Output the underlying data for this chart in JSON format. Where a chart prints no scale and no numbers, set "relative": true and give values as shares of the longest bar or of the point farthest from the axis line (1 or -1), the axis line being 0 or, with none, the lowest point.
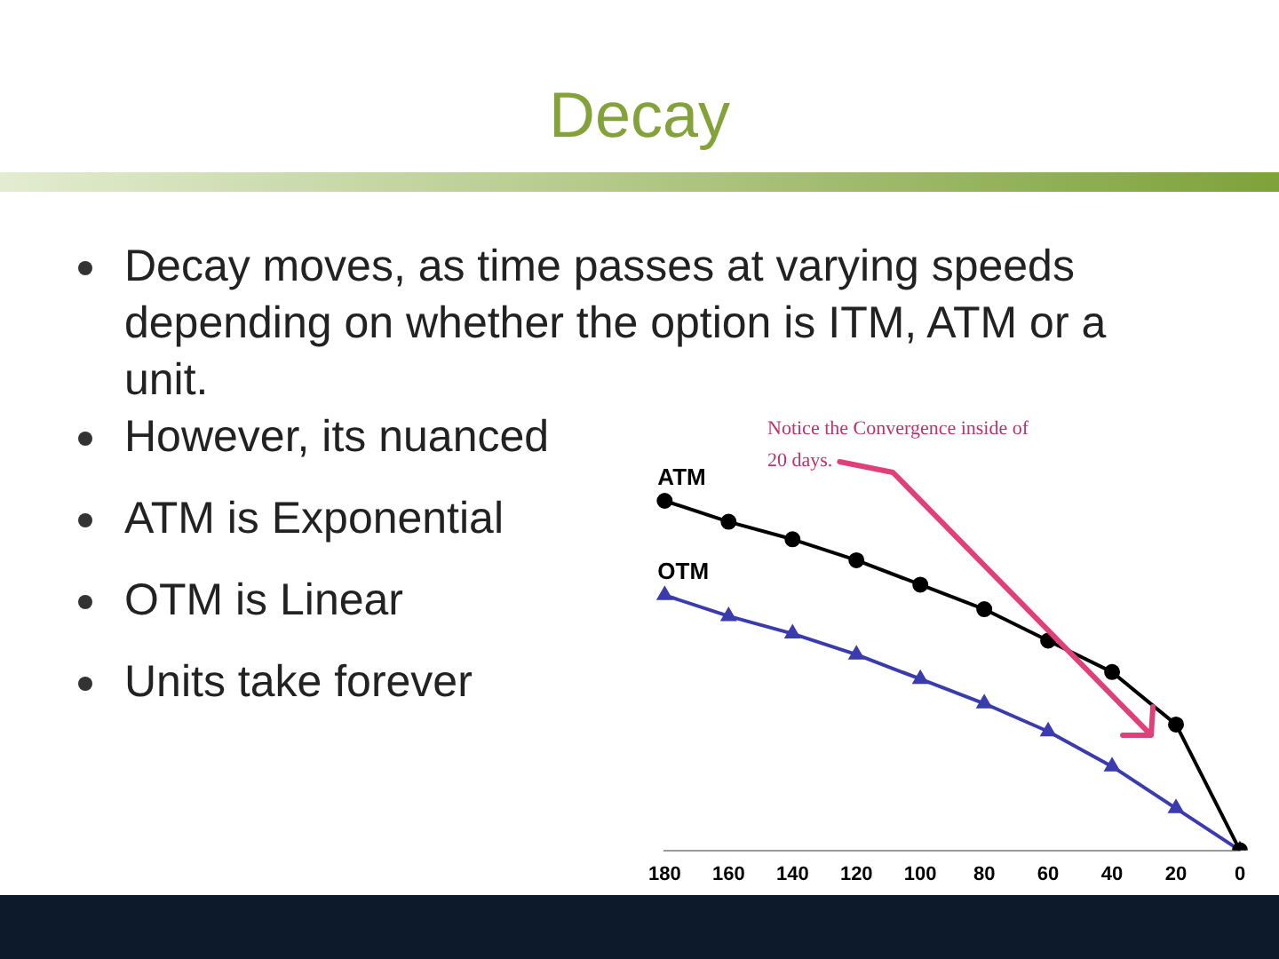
{
  "chart_data": {
    "type": "line",
    "title": "Decay",
    "categories": [
      "180",
      "160",
      "140",
      "120",
      "100",
      "80",
      "60",
      "40",
      "20",
      "0"
    ],
    "relative": true,
    "series": [
      {
        "name": "ATM",
        "color": "#000000",
        "marker": "circle",
        "values": [
          1,
          0.94,
          0.89,
          0.83,
          0.76,
          0.69,
          0.6,
          0.51,
          0.36,
          0
        ]
      },
      {
        "name": "OTM",
        "color": "#3b3bb0",
        "marker": "triangle",
        "values": [
          0.73,
          0.67,
          0.62,
          0.56,
          0.49,
          0.42,
          0.34,
          0.24,
          0.12,
          0
        ]
      }
    ],
    "annotations": [
      "Notice the Convergence inside of 20 days.",
      "Decay moves, as time passes at varying speeds depending on whether the option is ITM, ATM or a unit.",
      "However, its nuanced",
      "ATM is Exponential",
      "OTM is Linear",
      "Units take forever"
    ],
    "grid": false,
    "legend": false,
    "line_style": "solid"
  }
}
